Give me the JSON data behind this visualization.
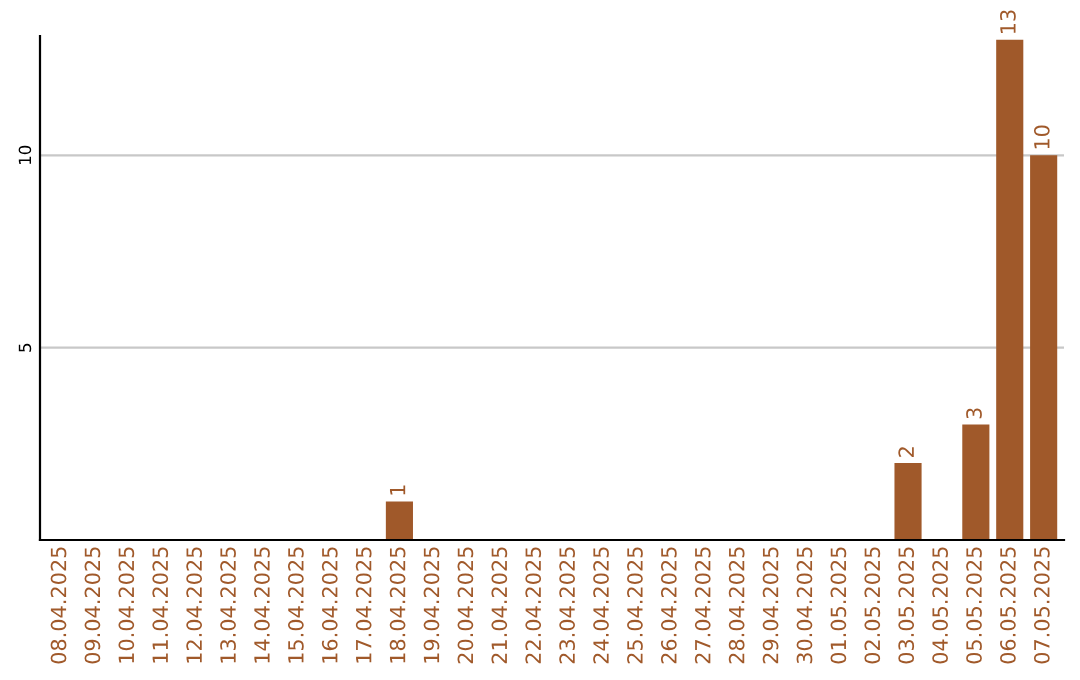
{
  "chart_data": {
    "type": "bar",
    "categories": [
      "08.04.2025",
      "09.04.2025",
      "10.04.2025",
      "11.04.2025",
      "12.04.2025",
      "13.04.2025",
      "14.04.2025",
      "15.04.2025",
      "16.04.2025",
      "17.04.2025",
      "18.04.2025",
      "19.04.2025",
      "20.04.2025",
      "21.04.2025",
      "22.04.2025",
      "23.04.2025",
      "24.04.2025",
      "25.04.2025",
      "26.04.2025",
      "27.04.2025",
      "28.04.2025",
      "29.04.2025",
      "30.04.2025",
      "01.05.2025",
      "02.05.2025",
      "03.05.2025",
      "04.05.2025",
      "05.05.2025",
      "06.05.2025",
      "07.05.2025"
    ],
    "values": [
      0,
      0,
      0,
      0,
      0,
      0,
      0,
      0,
      0,
      0,
      1,
      0,
      0,
      0,
      0,
      0,
      0,
      0,
      0,
      0,
      0,
      0,
      0,
      0,
      0,
      2,
      0,
      3,
      13,
      10
    ],
    "value_labels": [
      null,
      null,
      null,
      null,
      null,
      null,
      null,
      null,
      null,
      null,
      "1",
      null,
      null,
      null,
      null,
      null,
      null,
      null,
      null,
      null,
      null,
      null,
      null,
      null,
      null,
      "2",
      null,
      "3",
      "13",
      "10"
    ],
    "color": "#a0592a",
    "ylim": [
      0,
      13.1
    ],
    "yticks": [
      5,
      10
    ],
    "grid": "y"
  }
}
